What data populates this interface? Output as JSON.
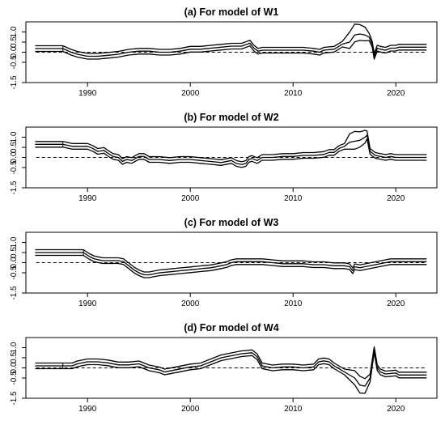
{
  "chart_data": [
    {
      "type": "line",
      "title": "(a) For model of W1",
      "xlim": [
        1984,
        2024
      ],
      "ylim": [
        -1.5,
        1.5
      ],
      "x_ticks": [
        "1990",
        "2000",
        "2010",
        "2020"
      ],
      "y_ticks": [
        "1.0",
        "0.5",
        "0.0",
        "-0.5",
        "-1.5"
      ],
      "reference_line": 0,
      "band_lines": [
        {
          "offset": 0.14
        },
        {
          "offset": 0
        },
        {
          "offset": -0.14
        }
      ],
      "upper_band_extra": [
        [
          2015,
          0.3
        ],
        [
          2016,
          0.4
        ],
        [
          2017,
          0.25
        ],
        [
          2017.5,
          0
        ]
      ],
      "lower_band_extra": [
        [
          2015,
          -0.15
        ],
        [
          2016,
          -0.2
        ],
        [
          2017,
          -0.15
        ],
        [
          2017.5,
          0
        ]
      ],
      "series": [
        {
          "x": [
            1984.9,
            1987.6
          ],
          "y": [
            0.18,
            0.18
          ]
        },
        {
          "x": [
            1987.6,
            1988.4,
            1989,
            1990,
            1991,
            1992,
            1993,
            1994,
            1995,
            1996,
            1997,
            1998,
            1999,
            2000,
            2001,
            2002,
            2003,
            2004,
            2005,
            2005.8,
            2006.2,
            2006.6,
            2007,
            2008,
            2009,
            2010,
            2011,
            2012,
            2012.6,
            2013,
            2014,
            2014.8,
            2015.5,
            2016,
            2016.5,
            2017,
            2017.4,
            2017.7,
            2017.9,
            2018.2,
            2018.5,
            2019,
            2019.5,
            2020,
            2020.3,
            2023
          ],
          "y": [
            0.18,
            0.0,
            -0.1,
            -0.2,
            -0.2,
            -0.15,
            -0.1,
            0.0,
            0.05,
            0.05,
            0.0,
            0.0,
            0.05,
            0.15,
            0.15,
            0.2,
            0.25,
            0.3,
            0.3,
            0.45,
            0.2,
            0.05,
            0.1,
            0.1,
            0.1,
            0.1,
            0.1,
            0.05,
            0.0,
            0.1,
            0.15,
            0.4,
            0.5,
            0.85,
            0.9,
            0.85,
            0.75,
            0.4,
            -0.2,
            0.2,
            0.15,
            0.1,
            0.2,
            0.2,
            0.25,
            0.25
          ]
        }
      ]
    },
    {
      "type": "line",
      "title": "(b) For model of W2",
      "xlim": [
        1984,
        2024
      ],
      "ylim": [
        -1.5,
        1.5
      ],
      "x_ticks": [
        "1990",
        "2000",
        "2010",
        "2020"
      ],
      "y_ticks": [
        "1.0",
        "0.5",
        "0.0",
        "-0.5",
        "-1.5"
      ],
      "reference_line": 0,
      "band_lines": [
        {
          "offset": 0.14
        },
        {
          "offset": 0
        },
        {
          "offset": -0.14
        }
      ],
      "upper_band_extra": [
        [
          2015,
          0.2
        ],
        [
          2016,
          0.35
        ],
        [
          2017,
          0.2
        ],
        [
          2017.3,
          0
        ]
      ],
      "lower_band_extra": [
        [
          2015,
          -0.15
        ],
        [
          2016,
          -0.25
        ],
        [
          2017,
          -0.15
        ],
        [
          2017.3,
          0
        ]
      ],
      "series": [
        {
          "x": [
            1984.9,
            1987.6
          ],
          "y": [
            0.65,
            0.65
          ]
        },
        {
          "x": [
            1987.6,
            1988.5,
            1989.5,
            1990,
            1990.5,
            1991,
            1991.6,
            1992,
            1992.5,
            1993,
            1993.4,
            1993.8,
            1994.3,
            1995,
            1995.5,
            1996,
            1997,
            1998,
            1999,
            2000,
            2001,
            2002,
            2003,
            2004,
            2004.5,
            2005,
            2005.4,
            2005.7,
            2006,
            2006.5,
            2007,
            2008,
            2009,
            2010,
            2011,
            2012,
            2013,
            2013.5,
            2014,
            2014.5,
            2015,
            2015.5,
            2016,
            2016.5,
            2017,
            2017.2,
            2017.5,
            2018,
            2018.5,
            2019,
            2019.5,
            2020,
            2023
          ],
          "y": [
            0.65,
            0.55,
            0.55,
            0.55,
            0.45,
            0.3,
            0.35,
            0.2,
            0.05,
            0.0,
            -0.2,
            -0.1,
            -0.15,
            0.05,
            0.05,
            -0.1,
            -0.1,
            -0.15,
            -0.1,
            -0.1,
            -0.15,
            -0.2,
            -0.25,
            -0.15,
            -0.3,
            -0.35,
            -0.3,
            -0.1,
            -0.05,
            -0.15,
            0.0,
            0.0,
            0.05,
            0.05,
            0.1,
            0.1,
            0.15,
            0.25,
            0.25,
            0.45,
            0.55,
            0.75,
            0.8,
            0.85,
            1.0,
            1.1,
            0.3,
            0.1,
            0.05,
            0.0,
            0.05,
            0.0,
            0.0
          ]
        }
      ]
    },
    {
      "type": "line",
      "title": "(c) For model of W3",
      "xlim": [
        1984,
        2024
      ],
      "ylim": [
        -1.5,
        1.5
      ],
      "x_ticks": [
        "1990",
        "2000",
        "2010",
        "2020"
      ],
      "y_ticks": [
        "1.0",
        "0.5",
        "0.0",
        "-0.5",
        "-1.5"
      ],
      "reference_line": 0,
      "band_lines": [
        {
          "offset": 0.14
        },
        {
          "offset": 0
        },
        {
          "offset": -0.14
        }
      ],
      "series": [
        {
          "x": [
            1984.9,
            1989.6
          ],
          "y": [
            0.5,
            0.5
          ]
        },
        {
          "x": [
            1989.6,
            1990.2,
            1990.6,
            1991,
            1991.5,
            1992,
            1993,
            1993.5,
            1994,
            1994.5,
            1995,
            1995.5,
            1996,
            1997,
            1998,
            1999,
            2000,
            2001,
            2002,
            2003,
            2003.5,
            2004,
            2004.5,
            2005,
            2006,
            2007,
            2008,
            2009,
            2010,
            2011,
            2012,
            2013,
            2014,
            2015,
            2015.5,
            2015.8,
            2016,
            2016.5,
            2017,
            2018,
            2019,
            2019.5,
            2020,
            2023
          ],
          "y": [
            0.5,
            0.3,
            0.2,
            0.15,
            0.1,
            0.1,
            0.1,
            0.05,
            -0.15,
            -0.35,
            -0.5,
            -0.6,
            -0.6,
            -0.5,
            -0.45,
            -0.4,
            -0.35,
            -0.3,
            -0.25,
            -0.15,
            -0.1,
            0.0,
            0.05,
            0.05,
            0.05,
            0.05,
            0.0,
            -0.05,
            -0.05,
            -0.05,
            -0.1,
            -0.1,
            -0.15,
            -0.15,
            -0.2,
            -0.4,
            -0.2,
            -0.25,
            -0.2,
            -0.1,
            0.0,
            0.05,
            0.05,
            0.05
          ]
        }
      ]
    },
    {
      "type": "line",
      "title": "(d) For model of W4",
      "xlim": [
        1984,
        2024
      ],
      "ylim": [
        -1.5,
        1.5
      ],
      "x_ticks": [
        "1990",
        "2000",
        "2010",
        "2020"
      ],
      "y_ticks": [
        "1.0",
        "0.5",
        "0.0",
        "-0.5",
        "-1.5"
      ],
      "reference_line": 0,
      "band_lines": [
        {
          "offset": 0.14
        },
        {
          "offset": 0
        },
        {
          "offset": -0.14
        }
      ],
      "upper_band_extra": [
        [
          2015.5,
          0.15
        ],
        [
          2016.5,
          0.3
        ],
        [
          2017.2,
          0.2
        ],
        [
          2017.6,
          0
        ]
      ],
      "lower_band_extra": [
        [
          2015.5,
          -0.15
        ],
        [
          2016.5,
          -0.25
        ],
        [
          2017.2,
          -0.2
        ],
        [
          2017.6,
          0
        ]
      ],
      "series": [
        {
          "x": [
            1984.9,
            1987.6
          ],
          "y": [
            0.1,
            0.1
          ]
        },
        {
          "x": [
            1987.6,
            1988.5,
            1989,
            1990,
            1991,
            1992,
            1993,
            1994,
            1995,
            1996,
            1997,
            1997.5,
            1998,
            1999,
            2000,
            2001,
            2002,
            2003,
            2004,
            2005,
            2006,
            2006.5,
            2007,
            2008,
            2009,
            2010,
            2011,
            2012,
            2012.5,
            2013,
            2013.5,
            2014,
            2015,
            2016,
            2016.5,
            2017,
            2017.5,
            2017.9,
            2018.2,
            2018.5,
            2019,
            2020,
            2020.3,
            2023
          ],
          "y": [
            0.1,
            0.1,
            0.2,
            0.3,
            0.3,
            0.25,
            0.15,
            0.15,
            0.2,
            0.0,
            -0.1,
            -0.2,
            -0.15,
            -0.05,
            0.05,
            0.1,
            0.3,
            0.5,
            0.6,
            0.7,
            0.75,
            0.55,
            0.1,
            0.0,
            0.05,
            0.05,
            0.0,
            0.05,
            0.3,
            0.35,
            0.3,
            0.1,
            -0.2,
            -0.5,
            -0.85,
            -0.9,
            -0.5,
            0.9,
            0.0,
            -0.2,
            -0.3,
            -0.25,
            -0.35,
            -0.35
          ]
        }
      ]
    }
  ]
}
